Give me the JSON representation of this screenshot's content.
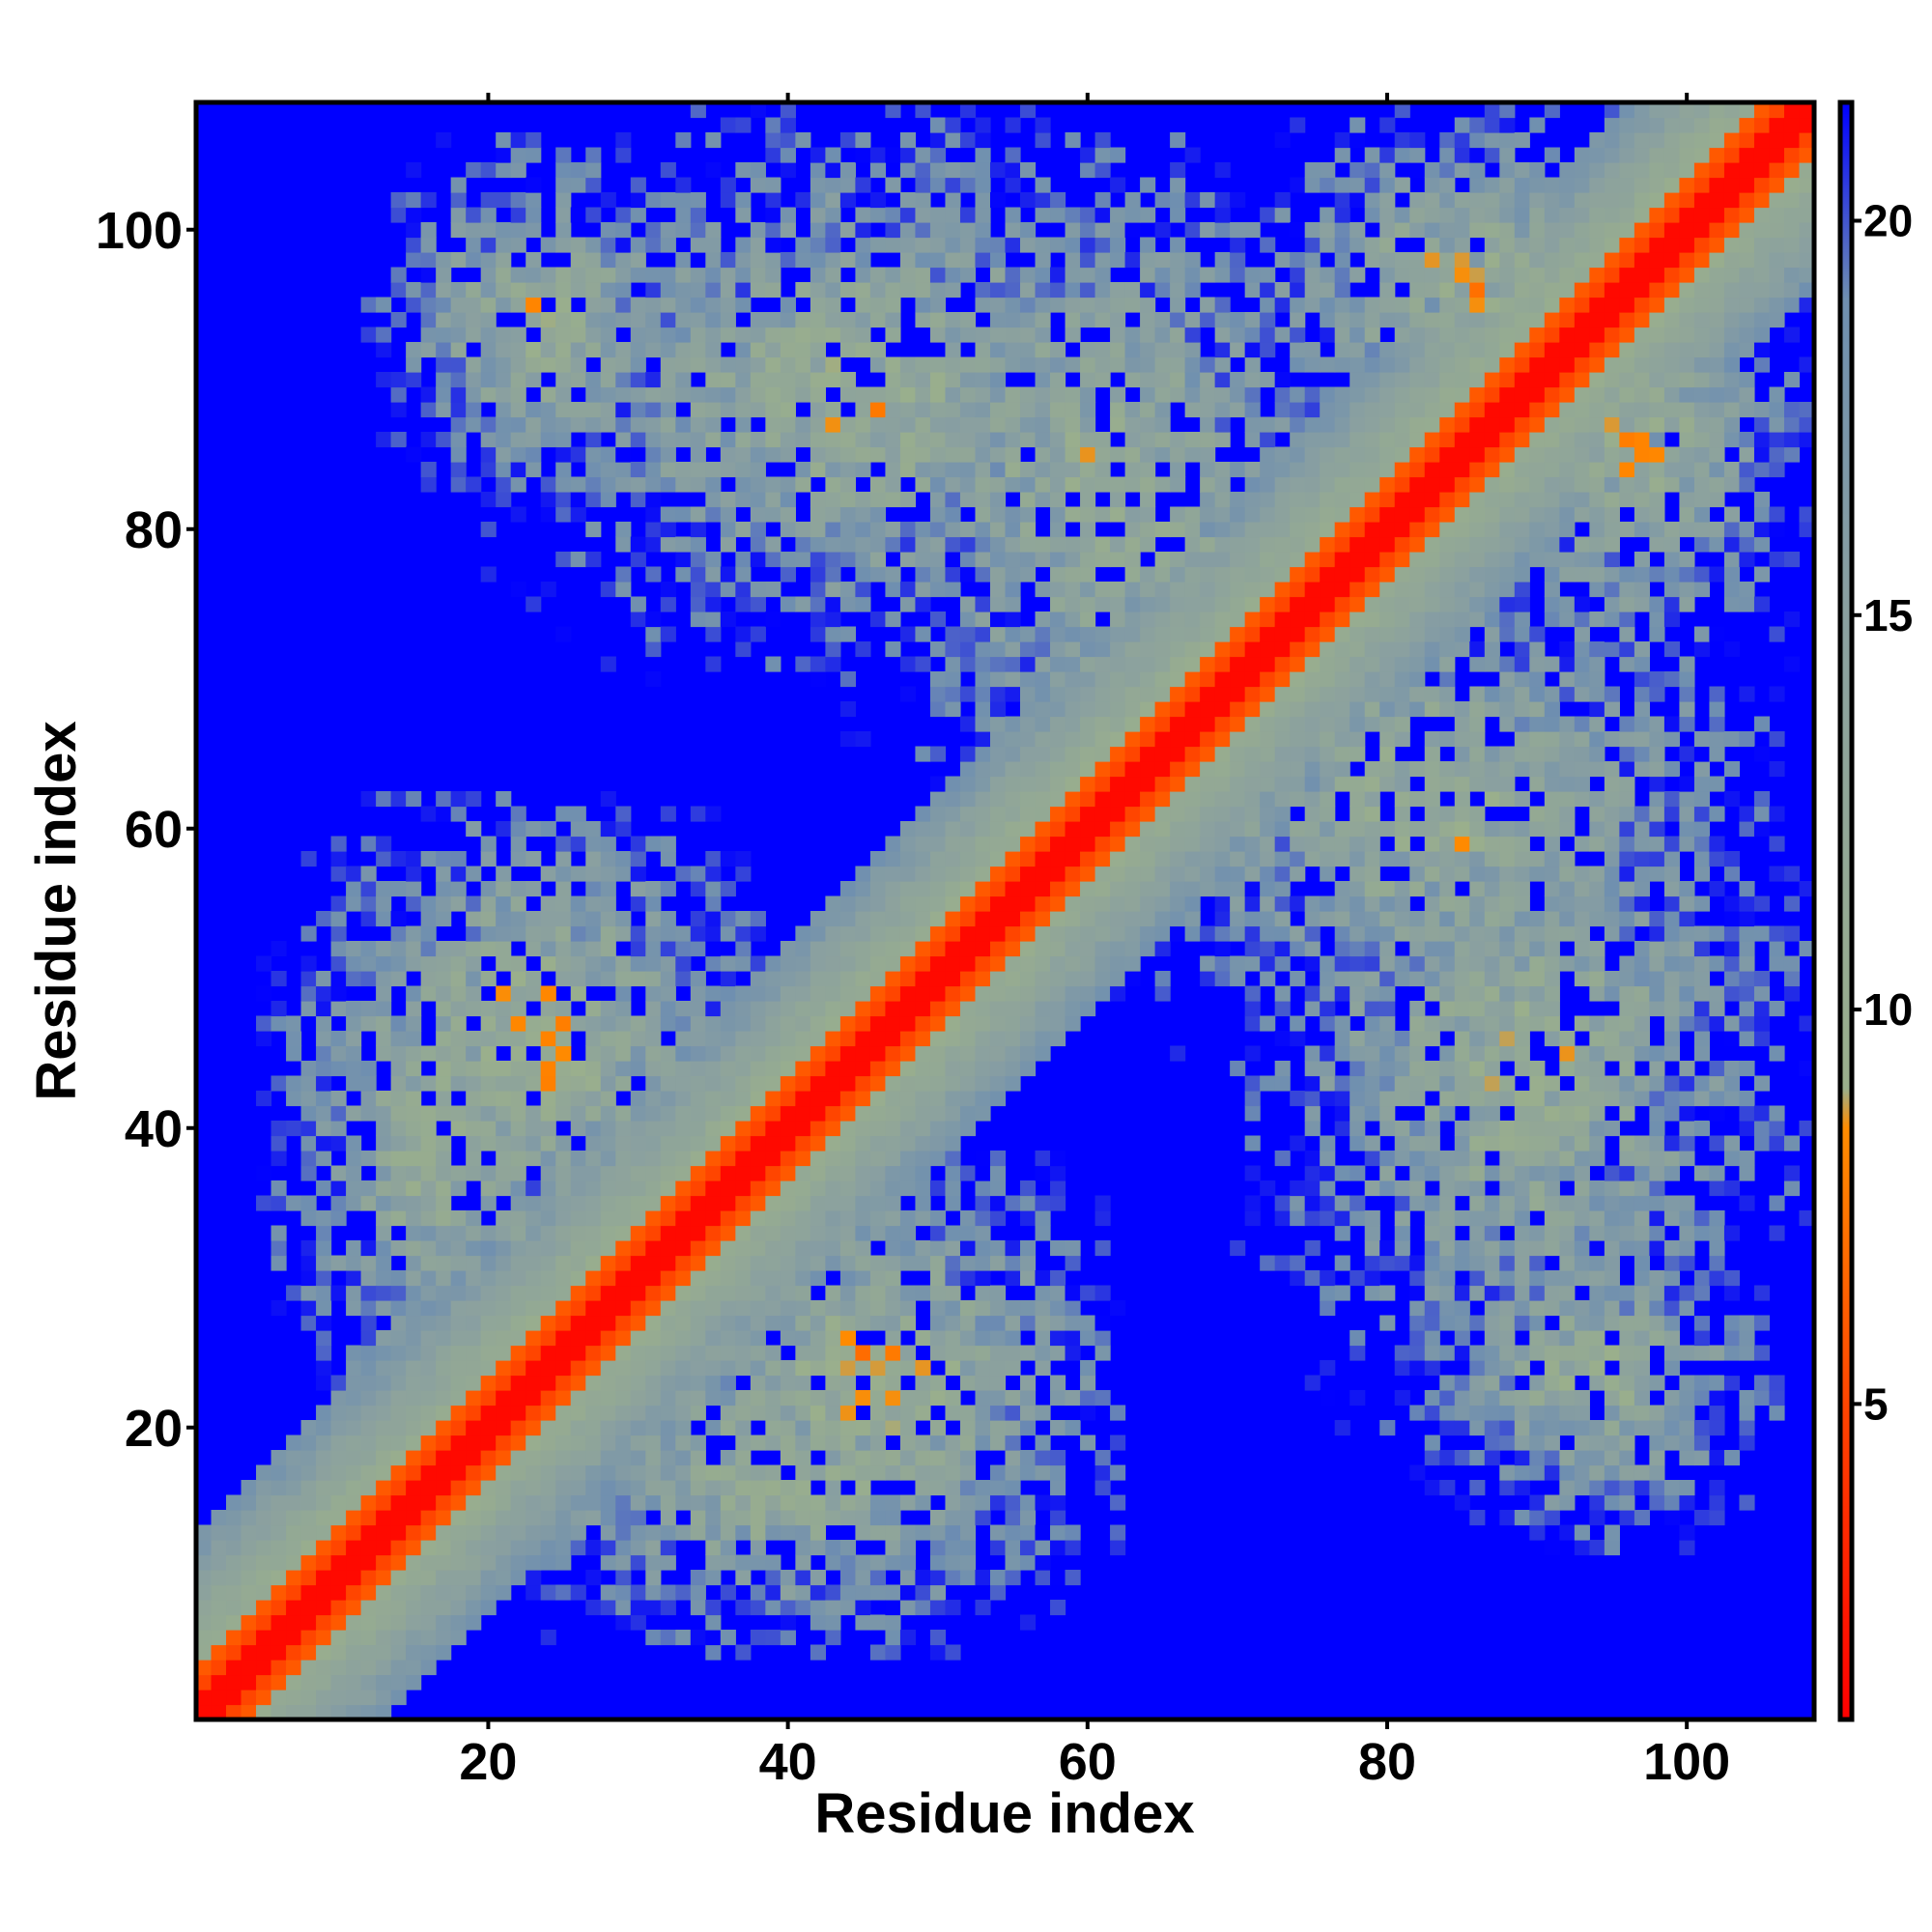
{
  "chart_data": {
    "type": "heatmap",
    "title": "",
    "xlabel": "Residue index",
    "ylabel": "Residue index",
    "n_residues": 108,
    "xlim": [
      1,
      108
    ],
    "ylim": [
      1,
      108
    ],
    "x_ticks": [
      20,
      40,
      60,
      80,
      100
    ],
    "y_ticks": [
      20,
      40,
      60,
      80,
      100
    ],
    "colorbar": {
      "ticks": [
        5,
        10,
        15,
        20
      ],
      "range": [
        1,
        21.5
      ],
      "stops": [
        {
          "value": 1,
          "color": "#ff0000"
        },
        {
          "value": 5,
          "color": "#ff4500"
        },
        {
          "value": 8.5,
          "color": "#ff8c00"
        },
        {
          "value": 9.0,
          "color": "#9aaf8c"
        },
        {
          "value": 15,
          "color": "#8aa0a0"
        },
        {
          "value": 19,
          "color": "#6f8fb0"
        },
        {
          "value": 21.5,
          "color": "#0000ff"
        }
      ],
      "cutoff_color": "#0000ff"
    },
    "matrix_description": "Symmetric pairwise residue distance map; diagonal band of short distances (red/orange) with off-diagonal contact clusters around residue pairs (5-35,10-40), (20-60,30-65), (35-75,70-108), (15-55,80-105), (65-108,70-108)",
    "contact_clusters": [
      {
        "i_range": [
          1,
          12
        ],
        "j_range": [
          1,
          14
        ],
        "min_distance": 6
      },
      {
        "i_range": [
          8,
          38
        ],
        "j_range": [
          30,
          62
        ],
        "min_distance": 6
      },
      {
        "i_range": [
          12,
          35
        ],
        "j_range": [
          82,
          106
        ],
        "min_distance": 7
      },
      {
        "i_range": [
          18,
          62
        ],
        "j_range": [
          5,
          28
        ],
        "min_distance": 7
      },
      {
        "i_range": [
          43,
          80
        ],
        "j_range": [
          60,
          106
        ],
        "min_distance": 7
      },
      {
        "i_range": [
          70,
          108
        ],
        "j_range": [
          20,
          70
        ],
        "min_distance": 7
      },
      {
        "i_range": [
          85,
          108
        ],
        "j_range": [
          68,
          104
        ],
        "min_distance": 7
      }
    ]
  }
}
